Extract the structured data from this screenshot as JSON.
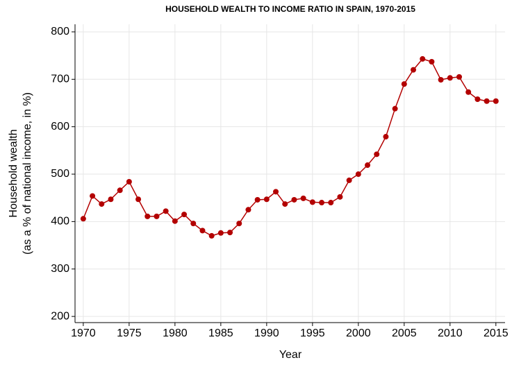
{
  "chart_data": {
    "type": "line",
    "title": "HOUSEHOLD WEALTH TO INCOME RATIO IN SPAIN, 1970-2015",
    "xlabel": "Year",
    "ylabel": [
      "Household wealth",
      "(as a % of national income, in %)"
    ],
    "x": [
      1970,
      1971,
      1972,
      1973,
      1974,
      1975,
      1976,
      1977,
      1978,
      1979,
      1980,
      1981,
      1982,
      1983,
      1984,
      1985,
      1986,
      1987,
      1988,
      1989,
      1990,
      1991,
      1992,
      1993,
      1994,
      1995,
      1996,
      1997,
      1998,
      1999,
      2000,
      2001,
      2002,
      2003,
      2004,
      2005,
      2006,
      2007,
      2008,
      2009,
      2010,
      2011,
      2012,
      2013,
      2014,
      2015
    ],
    "series": [
      {
        "name": "Household wealth",
        "color": "#b30000",
        "values": [
          406,
          454,
          437,
          447,
          466,
          484,
          447,
          411,
          411,
          422,
          401,
          415,
          396,
          381,
          370,
          376,
          377,
          396,
          425,
          446,
          447,
          463,
          437,
          446,
          449,
          441,
          440,
          440,
          452,
          487,
          500,
          519,
          542,
          579,
          638,
          690,
          720,
          743,
          737,
          699,
          703,
          705,
          673,
          658,
          654,
          654
        ]
      }
    ],
    "xlim": [
      1969.1,
      2016
    ],
    "xticks": [
      1970,
      1975,
      1980,
      1985,
      1990,
      1995,
      2000,
      2005,
      2010,
      2015
    ],
    "ylim": [
      187,
      816
    ],
    "yticks": [
      200,
      300,
      400,
      500,
      600,
      700,
      800
    ],
    "grid": true
  }
}
